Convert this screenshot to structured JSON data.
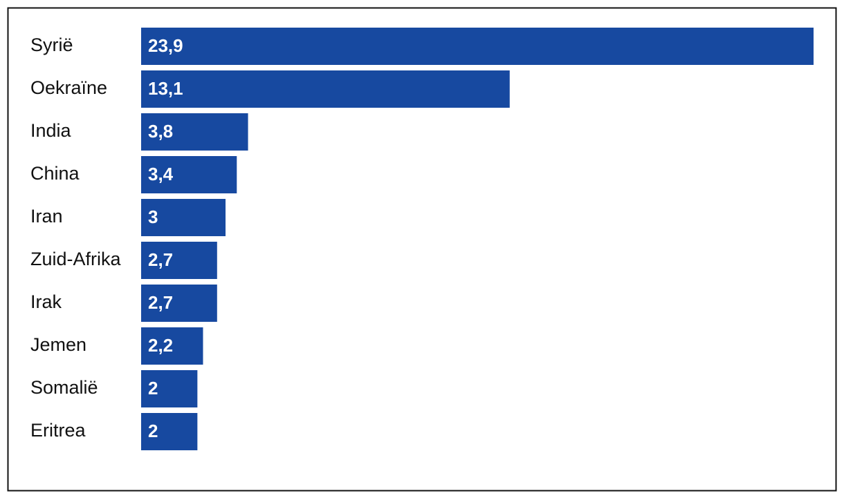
{
  "chart_data": {
    "type": "hbar",
    "categories": [
      "Syrië",
      "Oekraïne",
      "India",
      "China",
      "Iran",
      "Zuid-Afrika",
      "Irak",
      "Jemen",
      "Somalië",
      "Eritrea"
    ],
    "values": [
      23.9,
      13.1,
      3.8,
      3.4,
      3,
      2.7,
      2.7,
      2.2,
      2,
      2
    ],
    "value_labels": [
      "23,9",
      "13,1",
      "3,8",
      "3,4",
      "3",
      "2,7",
      "2,7",
      "2,2",
      "2",
      "2"
    ],
    "color": "#1749a0"
  }
}
